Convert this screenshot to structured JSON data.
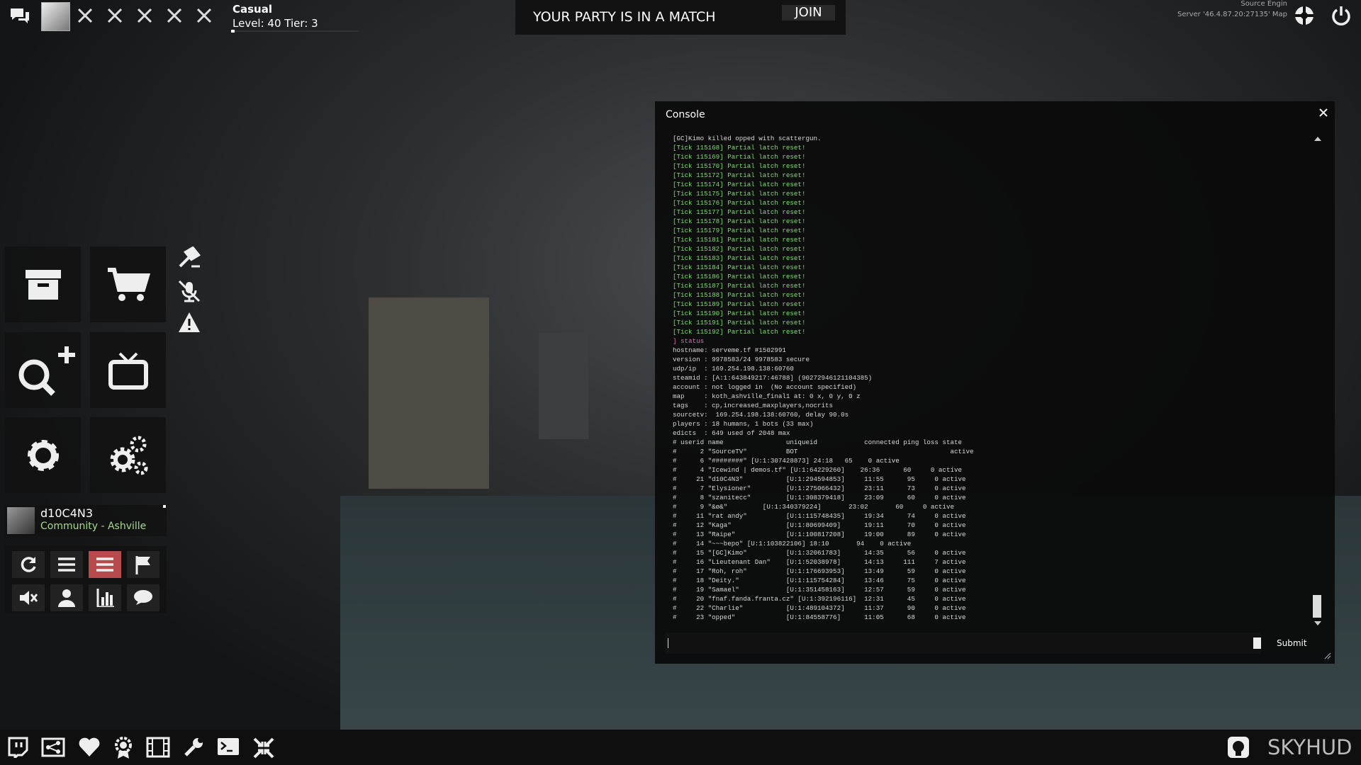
{
  "top_bar": {
    "mode": "Casual",
    "level": "Level: 40 Tier: 3",
    "party_message": "YOUR PARTY IS IN A MATCH",
    "join_button": "JOIN",
    "engine_info": "Source Engin",
    "server_info": "Server '46.4.87.20:27135' Map"
  },
  "console": {
    "title": "Console",
    "submit_button": "Submit",
    "lines": [
      {
        "text": "[GC]Kimo killed opped with scattergun.",
        "color": "#d8d8d8"
      },
      {
        "text": "[Tick 115168] Partial latch reset!",
        "color": "#7ddc6e"
      },
      {
        "text": "[Tick 115169] Partial latch reset!",
        "color": "#7ddc6e"
      },
      {
        "text": "[Tick 115170] Partial latch reset!",
        "color": "#7ddc6e"
      },
      {
        "text": "[Tick 115172] Partial latch reset!",
        "color": "#7ddc6e"
      },
      {
        "text": "[Tick 115174] Partial latch reset!",
        "color": "#7ddc6e"
      },
      {
        "text": "[Tick 115175] Partial latch reset!",
        "color": "#7ddc6e"
      },
      {
        "text": "[Tick 115176] Partial latch reset!",
        "color": "#7ddc6e"
      },
      {
        "text": "[Tick 115177] Partial latch reset!",
        "color": "#7ddc6e"
      },
      {
        "text": "[Tick 115178] Partial latch reset!",
        "color": "#7ddc6e"
      },
      {
        "text": "[Tick 115179] Partial latch reset!",
        "color": "#7ddc6e"
      },
      {
        "text": "[Tick 115181] Partial latch reset!",
        "color": "#7ddc6e"
      },
      {
        "text": "[Tick 115182] Partial latch reset!",
        "color": "#7ddc6e"
      },
      {
        "text": "[Tick 115183] Partial latch reset!",
        "color": "#7ddc6e"
      },
      {
        "text": "[Tick 115184] Partial latch reset!",
        "color": "#7ddc6e"
      },
      {
        "text": "[Tick 115186] Partial latch reset!",
        "color": "#7ddc6e"
      },
      {
        "text": "[Tick 115187] Partial latch reset!",
        "color": "#7ddc6e"
      },
      {
        "text": "[Tick 115188] Partial latch reset!",
        "color": "#7ddc6e"
      },
      {
        "text": "[Tick 115189] Partial latch reset!",
        "color": "#7ddc6e"
      },
      {
        "text": "[Tick 115190] Partial latch reset!",
        "color": "#7ddc6e"
      },
      {
        "text": "[Tick 115191] Partial latch reset!",
        "color": "#7ddc6e"
      },
      {
        "text": "[Tick 115192] Partial latch reset!",
        "color": "#7ddc6e"
      },
      {
        "text": "] status",
        "color": "#d86fb0"
      },
      {
        "text": "hostname: serveme.tf #1502991",
        "color": "#d8d8d8"
      },
      {
        "text": "version : 9978583/24 9978583 secure",
        "color": "#d8d8d8"
      },
      {
        "text": "udp/ip  : 169.254.198.138:60760",
        "color": "#d8d8d8"
      },
      {
        "text": "steamid : [A:1:643849217:46788] (90272946121104385)",
        "color": "#d8d8d8"
      },
      {
        "text": "account : not logged in  (No account specified)",
        "color": "#d8d8d8"
      },
      {
        "text": "map     : koth_ashville_final1 at: 0 x, 0 y, 0 z",
        "color": "#d8d8d8"
      },
      {
        "text": "tags    : cp,increased_maxplayers,nocrits",
        "color": "#d8d8d8"
      },
      {
        "text": "sourcetv:  169.254.198.138:60760, delay 90.0s",
        "color": "#d8d8d8"
      },
      {
        "text": "players : 18 humans, 1 bots (33 max)",
        "color": "#d8d8d8"
      },
      {
        "text": "edicts  : 649 used of 2048 max",
        "color": "#d8d8d8"
      },
      {
        "text": "# userid name                uniqueid            connected ping loss state",
        "color": "#d8d8d8"
      },
      {
        "text": "#      2 \"SourceTV\"          BOT                                       active",
        "color": "#d8d8d8"
      },
      {
        "text": "#      6 \"########\" [U:1:307428873] 24:18   65    0 active",
        "color": "#d8d8d8"
      },
      {
        "text": "#      4 \"Icewind | demos.tf\" [U:1:64229260]    26:36      60     0 active",
        "color": "#d8d8d8"
      },
      {
        "text": "#     21 \"d10C4N3\"           [U:1:294594853]     11:55      95     0 active",
        "color": "#d8d8d8"
      },
      {
        "text": "#      7 \"Elysioner\"         [U:1:275066432]     23:11      73     0 active",
        "color": "#d8d8d8"
      },
      {
        "text": "#      8 \"szanitecc\"         [U:1:308379418]     23:09      60     0 active",
        "color": "#d8d8d8"
      },
      {
        "text": "#      9 \"&ø&\"         [U:1:340379224]       23:02       60     0 active",
        "color": "#d8d8d8"
      },
      {
        "text": "#     11 \"rat andy\"          [U:1:115748435]     19:34      74     0 active",
        "color": "#d8d8d8"
      },
      {
        "text": "#     12 \"Kaga\"              [U:1:80699409]      19:11      70     0 active",
        "color": "#d8d8d8"
      },
      {
        "text": "#     13 \"Raipe\"             [U:1:100817208]     19:00      89     0 active",
        "color": "#d8d8d8"
      },
      {
        "text": "#     14 \"~~~bepo\" [U:1:103822106] 18:10       94    0 active",
        "color": "#d8d8d8"
      },
      {
        "text": "#     15 \"[GC]Kimo\"          [U:1:32061783]      14:35      56     0 active",
        "color": "#d8d8d8"
      },
      {
        "text": "#     16 \"Lieutenant Dan\"    [U:1:52038978]      14:13     111     7 active",
        "color": "#d8d8d8"
      },
      {
        "text": "#     17 \"Roh, roh\"          [U:1:176693953]     13:49      59     0 active",
        "color": "#d8d8d8"
      },
      {
        "text": "#     18 \"Deity.\"            [U:1:115754284]     13:46      75     0 active",
        "color": "#d8d8d8"
      },
      {
        "text": "#     19 \"Samael\"            [U:1:351458163]     12:57      59     0 active",
        "color": "#d8d8d8"
      },
      {
        "text": "#     20 \"fnaf.fanda.franta.cz\" [U:1:392196116]  12:31      45     0 active",
        "color": "#d8d8d8"
      },
      {
        "text": "#     22 \"Charlie\"           [U:1:489104372]     11:37      90     0 active",
        "color": "#d8d8d8"
      },
      {
        "text": "#     23 \"opped\"             [U:1:84558776]      11:05      68     0 active",
        "color": "#d8d8d8"
      }
    ]
  },
  "player_card": {
    "name": "d10C4N3",
    "location": "Community - Ashville"
  },
  "footer": {
    "brand": "SKYHUD"
  }
}
